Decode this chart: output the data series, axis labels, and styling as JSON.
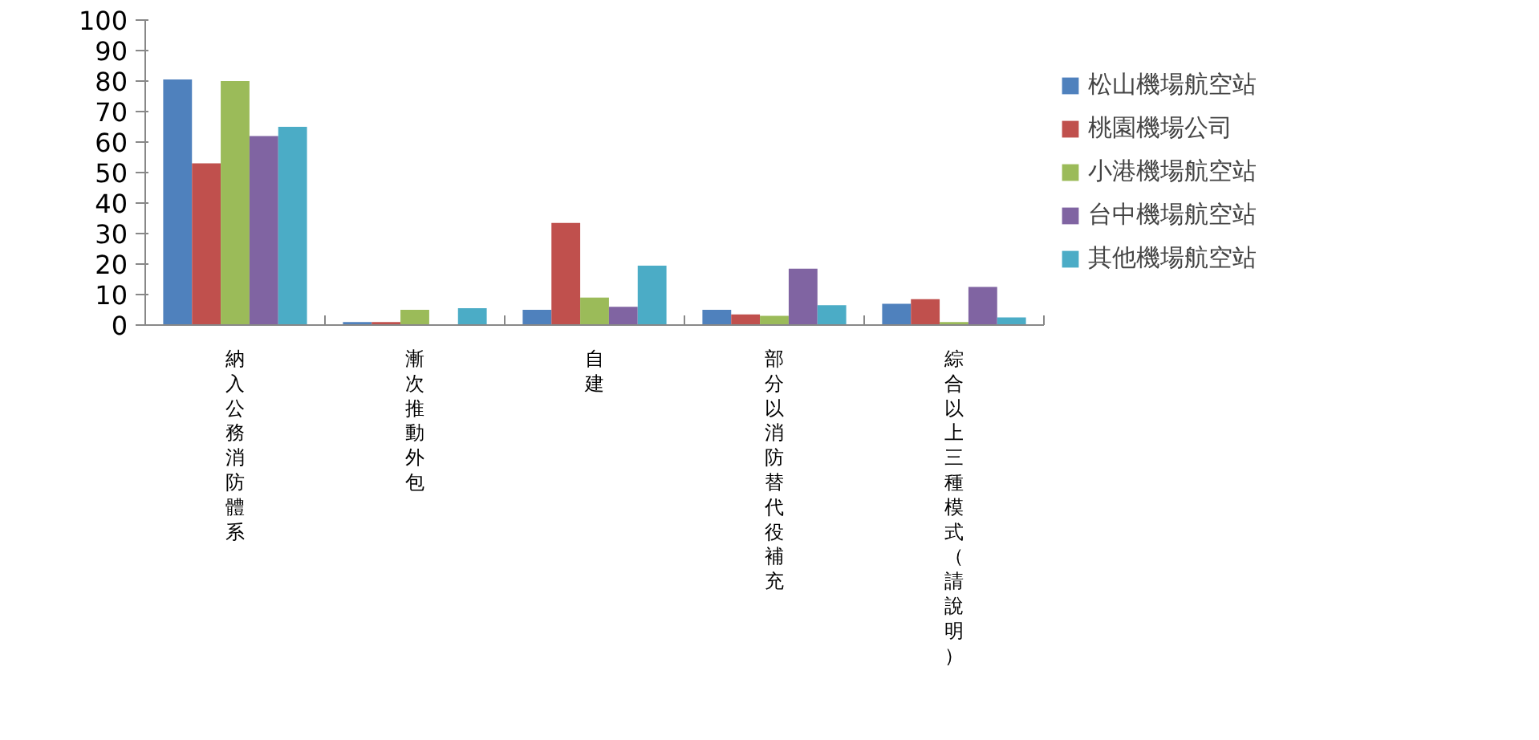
{
  "chart_data": {
    "type": "bar",
    "categories": [
      "納入公務消防體系",
      "漸次推動外包",
      "自建",
      "部分以消防替代役補充",
      "綜合以上三種模式（請說明）"
    ],
    "series": [
      {
        "name": "松山機場航空站",
        "color": "#4f81bd",
        "values": [
          80.5,
          1,
          5,
          5,
          7
        ]
      },
      {
        "name": "桃園機場公司",
        "color": "#c0504d",
        "values": [
          53,
          1,
          33.5,
          3.5,
          8.5
        ]
      },
      {
        "name": "小港機場航空站",
        "color": "#9bbb59",
        "values": [
          80,
          5,
          9,
          3,
          1
        ]
      },
      {
        "name": "台中機場航空站",
        "color": "#8064a2",
        "values": [
          62,
          0,
          6,
          18.5,
          12.5
        ]
      },
      {
        "name": "其他機場航空站",
        "color": "#4bacc6",
        "values": [
          65,
          5.5,
          19.5,
          6.5,
          2.5
        ]
      }
    ],
    "ylim": [
      0,
      100
    ],
    "yticks": [
      0,
      10,
      20,
      30,
      40,
      50,
      60,
      70,
      80,
      90,
      100
    ],
    "grid": false,
    "legend": "right"
  }
}
